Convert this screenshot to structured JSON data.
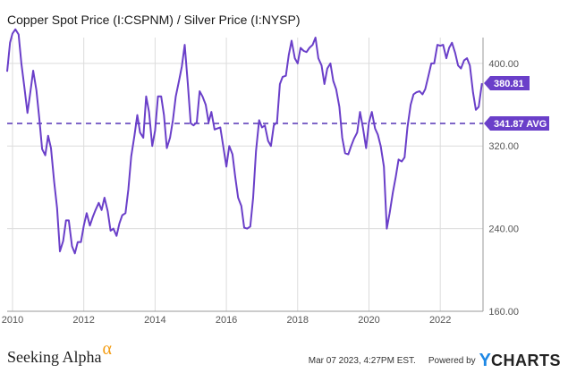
{
  "chart_data": {
    "type": "line",
    "title": "Copper Spot Price (I:CSPNM) / Silver Price (I:NYSP)",
    "xlabel": "",
    "ylabel": "",
    "x_ticks": [
      "2010",
      "2012",
      "2014",
      "2016",
      "2018",
      "2020",
      "2022"
    ],
    "y_ticks": [
      "160.00",
      "240.00",
      "320.00",
      "400.00"
    ],
    "ylim": [
      160,
      425
    ],
    "xlim": [
      2009.85,
      2023.2
    ],
    "grid": true,
    "series": [
      {
        "color": "#6a3fc9",
        "x": [
          2009.85,
          2009.93,
          2010.0,
          2010.08,
          2010.17,
          2010.25,
          2010.33,
          2010.42,
          2010.5,
          2010.58,
          2010.67,
          2010.75,
          2010.83,
          2010.92,
          2011.0,
          2011.08,
          2011.17,
          2011.25,
          2011.33,
          2011.42,
          2011.5,
          2011.58,
          2011.67,
          2011.75,
          2011.83,
          2011.92,
          2012.0,
          2012.08,
          2012.17,
          2012.25,
          2012.33,
          2012.42,
          2012.5,
          2012.58,
          2012.67,
          2012.75,
          2012.83,
          2012.92,
          2013.0,
          2013.08,
          2013.17,
          2013.25,
          2013.33,
          2013.42,
          2013.5,
          2013.58,
          2013.67,
          2013.75,
          2013.83,
          2013.92,
          2014.0,
          2014.08,
          2014.17,
          2014.25,
          2014.33,
          2014.42,
          2014.5,
          2014.58,
          2014.67,
          2014.75,
          2014.83,
          2014.92,
          2015.0,
          2015.08,
          2015.17,
          2015.25,
          2015.33,
          2015.42,
          2015.5,
          2015.58,
          2015.67,
          2015.75,
          2015.83,
          2015.92,
          2016.0,
          2016.08,
          2016.17,
          2016.25,
          2016.33,
          2016.42,
          2016.5,
          2016.58,
          2016.67,
          2016.75,
          2016.83,
          2016.92,
          2017.0,
          2017.08,
          2017.17,
          2017.25,
          2017.33,
          2017.42,
          2017.5,
          2017.58,
          2017.67,
          2017.75,
          2017.83,
          2017.92,
          2018.0,
          2018.08,
          2018.17,
          2018.25,
          2018.33,
          2018.42,
          2018.5,
          2018.58,
          2018.67,
          2018.75,
          2018.83,
          2018.92,
          2019.0,
          2019.08,
          2019.17,
          2019.25,
          2019.33,
          2019.42,
          2019.5,
          2019.58,
          2019.67,
          2019.75,
          2019.83,
          2019.92,
          2020.0,
          2020.08,
          2020.17,
          2020.25,
          2020.33,
          2020.42,
          2020.5,
          2020.58,
          2020.67,
          2020.75,
          2020.83,
          2020.92,
          2021.0,
          2021.08,
          2021.17,
          2021.25,
          2021.33,
          2021.42,
          2021.5,
          2021.58,
          2021.67,
          2021.75,
          2021.83,
          2021.92,
          2022.0,
          2022.08,
          2022.17,
          2022.25,
          2022.33,
          2022.42,
          2022.5,
          2022.58,
          2022.67,
          2022.75,
          2022.83,
          2022.92,
          2023.0,
          2023.08,
          2023.17
        ],
        "values": [
          392,
          420,
          429,
          433,
          428,
          400,
          378,
          352,
          372,
          393,
          374,
          347,
          317,
          311,
          330,
          318,
          285,
          260,
          218,
          228,
          248,
          248,
          223,
          216,
          227,
          227,
          243,
          255,
          243,
          251,
          258,
          265,
          258,
          270,
          257,
          238,
          240,
          233,
          245,
          253,
          255,
          278,
          310,
          330,
          350,
          333,
          328,
          368,
          353,
          320,
          335,
          368,
          368,
          350,
          318,
          328,
          345,
          368,
          383,
          397,
          418,
          380,
          342,
          340,
          343,
          373,
          368,
          360,
          343,
          353,
          336,
          337,
          338,
          318,
          300,
          320,
          312,
          290,
          270,
          262,
          241,
          240,
          242,
          270,
          315,
          345,
          338,
          340,
          325,
          320,
          340,
          343,
          380,
          387,
          388,
          408,
          422,
          405,
          400,
          415,
          412,
          411,
          415,
          418,
          425,
          405,
          398,
          380,
          395,
          400,
          383,
          375,
          358,
          328,
          313,
          312,
          320,
          327,
          333,
          353,
          338,
          318,
          343,
          353,
          337,
          331,
          320,
          300,
          240,
          255,
          275,
          290,
          307,
          305,
          309,
          338,
          360,
          370,
          372,
          373,
          370,
          375,
          388,
          400,
          400,
          418,
          417,
          418,
          405,
          415,
          420,
          410,
          398,
          395,
          403,
          405,
          398,
          372,
          355,
          358,
          380.81
        ]
      }
    ],
    "average": {
      "value": 341.87,
      "label": "341.87 AVG"
    },
    "last_value": {
      "value": 380.81,
      "label": "380.81"
    }
  },
  "footer": {
    "brand_text": "Seeking Alpha",
    "brand_mark": "α",
    "date": "Mar 07 2023, 4:27PM EST.",
    "powered_by": "Powered by",
    "logo_y": "Y",
    "logo_rest": "CHARTS"
  },
  "colors": {
    "line": "#6a3fc9",
    "avg_line": "#5533b5",
    "grid": "#dcdcdc",
    "axis": "#999999"
  }
}
